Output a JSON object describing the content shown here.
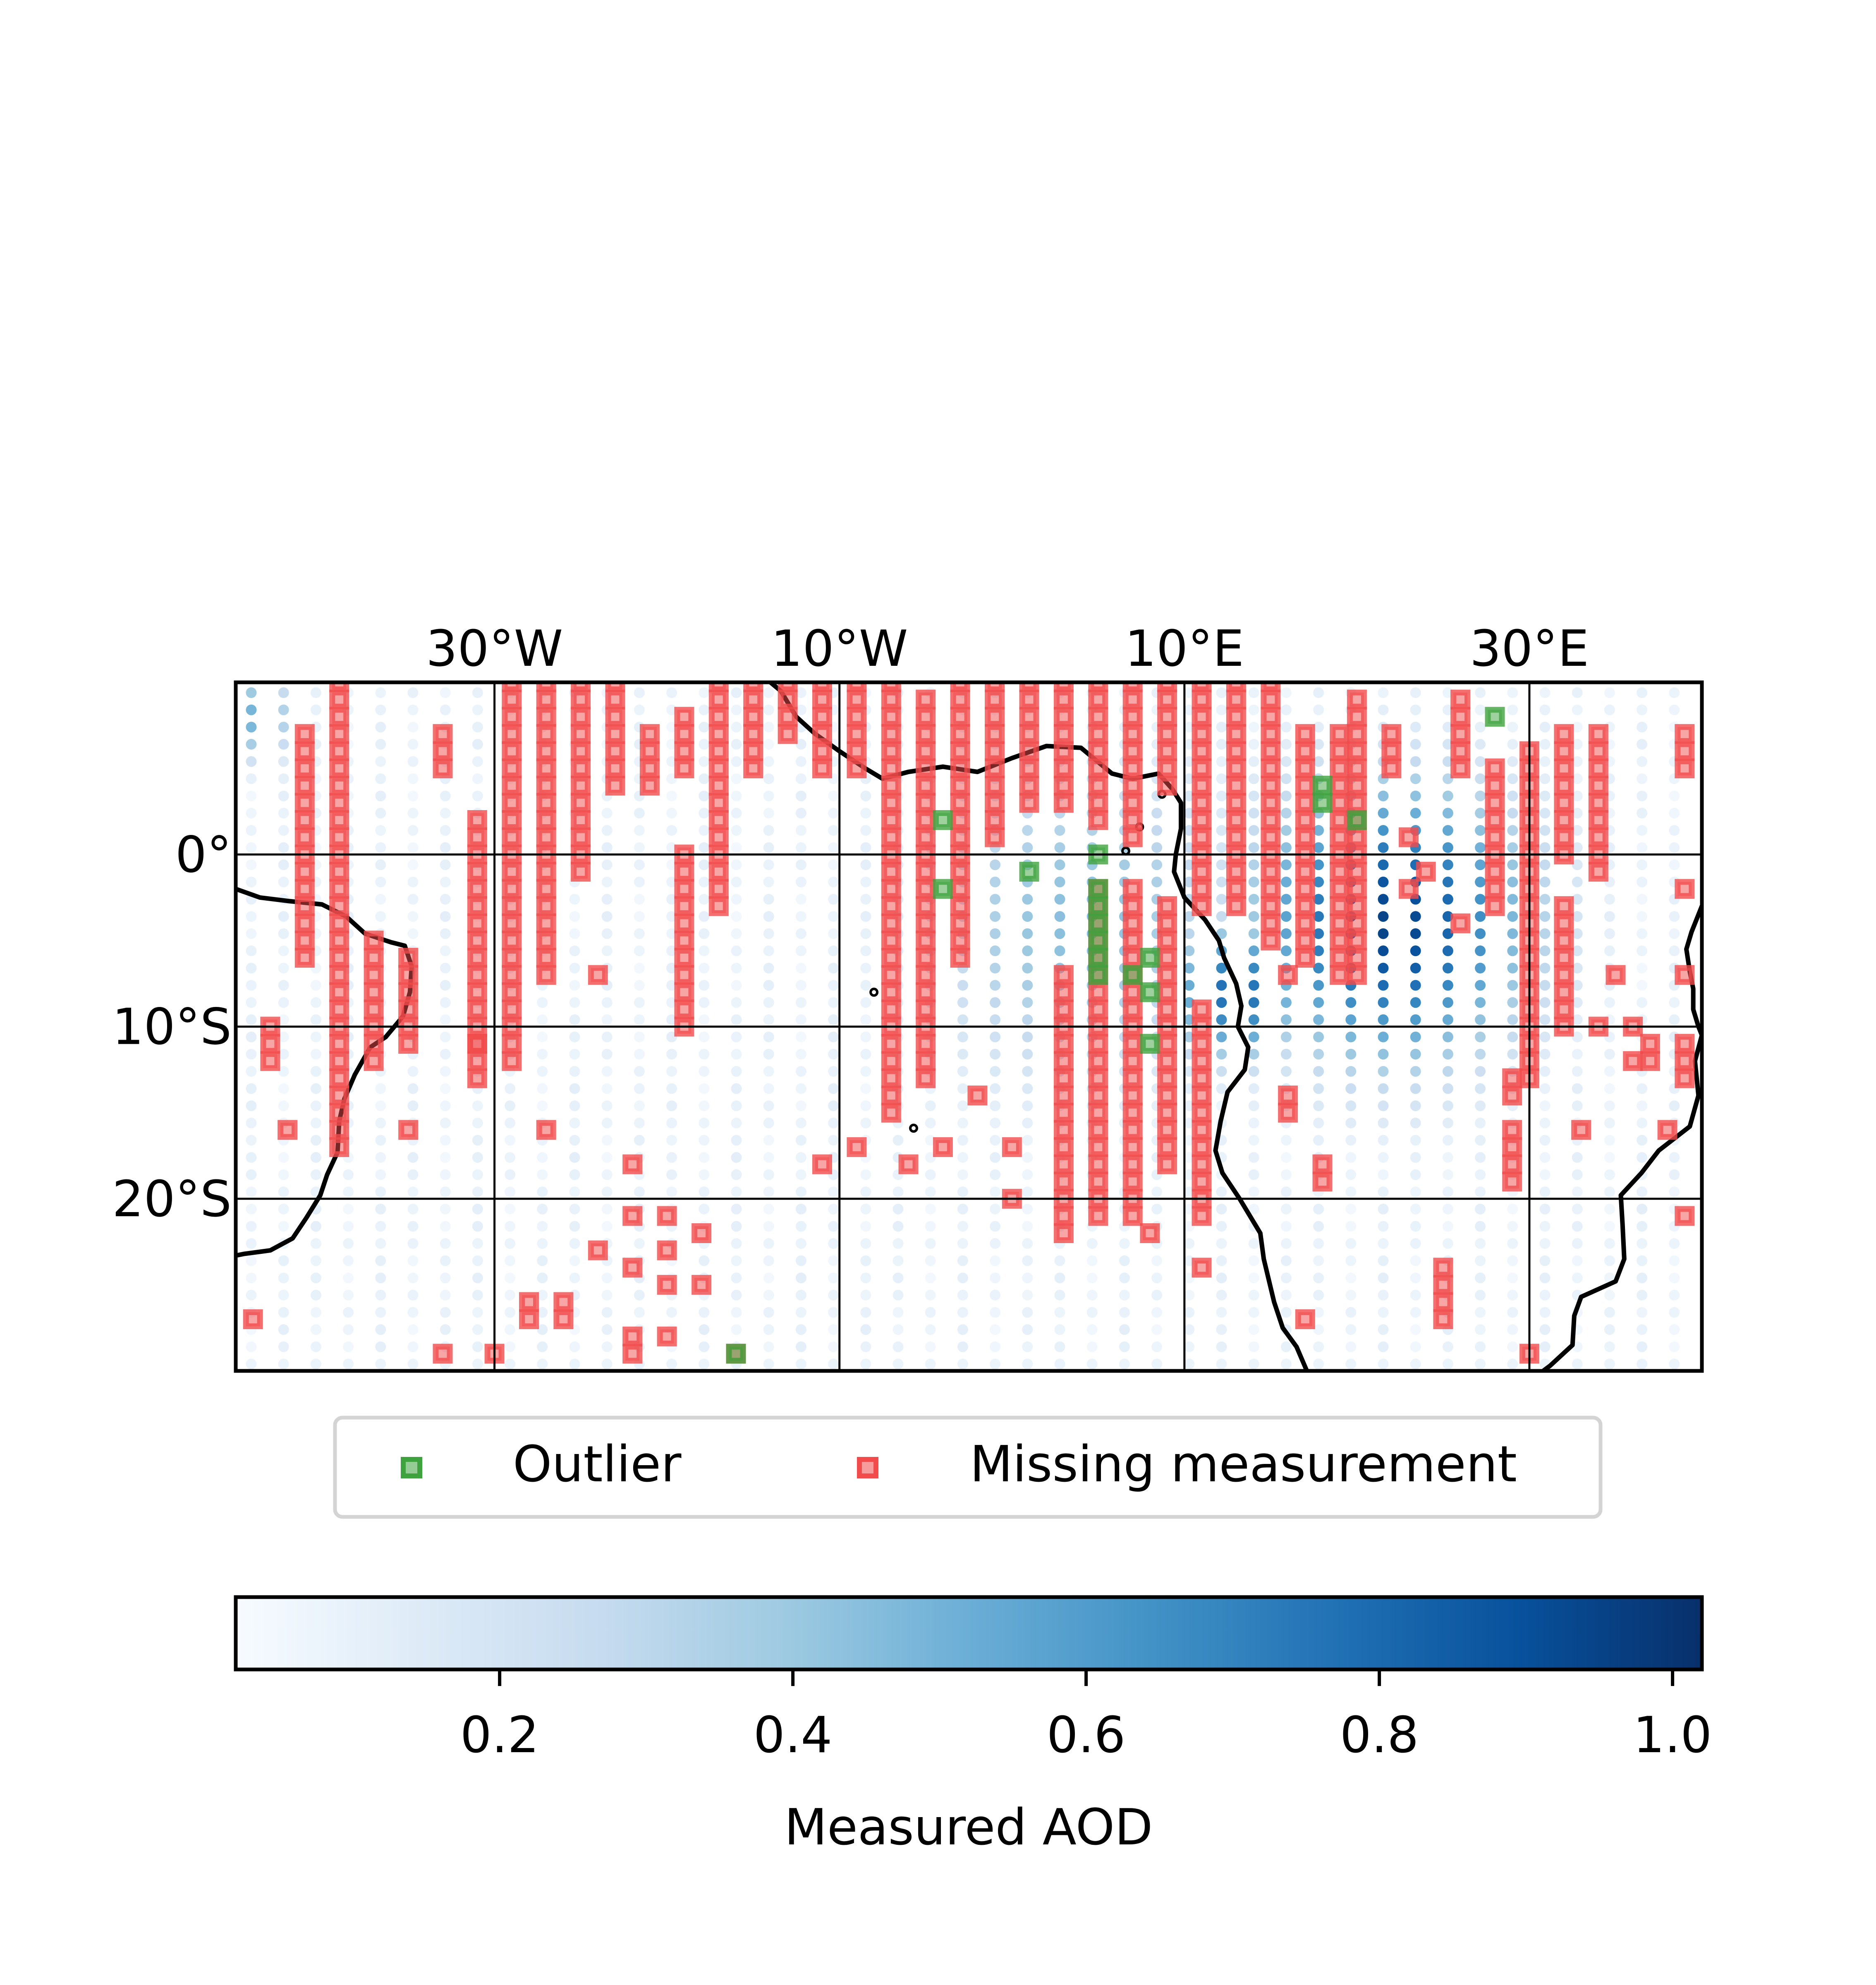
{
  "map": {
    "lon_range": [
      -45,
      40
    ],
    "lat_range": [
      -30,
      10
    ],
    "lon_ticks": [
      {
        "value": -30,
        "label": "30°W"
      },
      {
        "value": -10,
        "label": "10°W"
      },
      {
        "value": 10,
        "label": "10°E"
      },
      {
        "value": 30,
        "label": "30°E"
      }
    ],
    "lat_ticks": [
      {
        "value": 0,
        "label": "0°"
      },
      {
        "value": -10,
        "label": "10°S"
      },
      {
        "value": -20,
        "label": "20°S"
      }
    ],
    "grid": true,
    "grid_step_deg": 1.875,
    "coastline_color": "#000000",
    "colormap": "Blues",
    "aod_field": {
      "background_value": 0.08,
      "hotspots": [
        {
          "lon": 22,
          "lat": -4,
          "peak": 0.95,
          "radius_deg": 6
        },
        {
          "lon": 13,
          "lat": -8,
          "peak": 0.8,
          "radius_deg": 3
        },
        {
          "lon": 4,
          "lat": -4,
          "peak": 0.45,
          "radius_deg": 7
        },
        {
          "lon": -44,
          "lat": 8,
          "peak": 0.5,
          "radius_deg": 2
        }
      ]
    },
    "missing_color": "#f14b4b",
    "outlier_color": "#3ea33e",
    "missing_columns": [
      {
        "lon": -43,
        "lat_from": -10,
        "lat_to": -12
      },
      {
        "lon": -41,
        "lat_from": 7,
        "lat_to": -6
      },
      {
        "lon": -39,
        "lat_from": 10,
        "lat_to": -17
      },
      {
        "lon": -37,
        "lat_from": -5,
        "lat_to": -12
      },
      {
        "lon": -35,
        "lat_from": -6,
        "lat_to": -11
      },
      {
        "lon": -33,
        "lat_from": 7,
        "lat_to": 5
      },
      {
        "lon": -31,
        "lat_from": 2,
        "lat_to": -13
      },
      {
        "lon": -29,
        "lat_from": 10,
        "lat_to": -12
      },
      {
        "lon": -27,
        "lat_from": 10,
        "lat_to": -7
      },
      {
        "lon": -25,
        "lat_from": 10,
        "lat_to": -1
      },
      {
        "lon": -23,
        "lat_from": 10,
        "lat_to": 4
      },
      {
        "lon": -21,
        "lat_from": 7,
        "lat_to": 4
      },
      {
        "lon": -19,
        "lat_from": 8,
        "lat_to": 5
      },
      {
        "lon": -19,
        "lat_from": 0,
        "lat_to": -10
      },
      {
        "lon": -17,
        "lat_from": 10,
        "lat_to": -3
      },
      {
        "lon": -15,
        "lat_from": 10,
        "lat_to": 5
      },
      {
        "lon": -13,
        "lat_from": 10,
        "lat_to": 7
      },
      {
        "lon": -11,
        "lat_from": 10,
        "lat_to": 5
      },
      {
        "lon": -9,
        "lat_from": 10,
        "lat_to": 5
      },
      {
        "lon": -7,
        "lat_from": 10,
        "lat_to": -15
      },
      {
        "lon": -5,
        "lat_from": 9,
        "lat_to": -13
      },
      {
        "lon": -3,
        "lat_from": 10,
        "lat_to": -6
      },
      {
        "lon": -1,
        "lat_from": 10,
        "lat_to": 1
      },
      {
        "lon": 1,
        "lat_from": 10,
        "lat_to": 3
      },
      {
        "lon": 3,
        "lat_from": 10,
        "lat_to": 3
      },
      {
        "lon": 3,
        "lat_from": -7,
        "lat_to": -21
      },
      {
        "lon": 5,
        "lat_from": 10,
        "lat_to": 2
      },
      {
        "lon": 5,
        "lat_from": -2,
        "lat_to": -21
      },
      {
        "lon": 7,
        "lat_from": 10,
        "lat_to": 1
      },
      {
        "lon": 7,
        "lat_from": -2,
        "lat_to": -21
      },
      {
        "lon": 9,
        "lat_from": 10,
        "lat_to": 4
      },
      {
        "lon": 9,
        "lat_from": -3,
        "lat_to": -18
      },
      {
        "lon": 11,
        "lat_from": 10,
        "lat_to": -3
      },
      {
        "lon": 11,
        "lat_from": -9,
        "lat_to": -21
      },
      {
        "lon": 13,
        "lat_from": 10,
        "lat_to": -3
      },
      {
        "lon": 15,
        "lat_from": 10,
        "lat_to": -5
      },
      {
        "lon": 17,
        "lat_from": 7,
        "lat_to": -6
      },
      {
        "lon": 19,
        "lat_from": 7,
        "lat_to": -7
      },
      {
        "lon": 20,
        "lat_from": 9,
        "lat_to": -6
      },
      {
        "lon": 22,
        "lat_from": 7,
        "lat_to": 5
      },
      {
        "lon": 26,
        "lat_from": 9,
        "lat_to": 5
      },
      {
        "lon": 28,
        "lat_from": 5,
        "lat_to": -3
      },
      {
        "lon": 30,
        "lat_from": 6,
        "lat_to": -13
      },
      {
        "lon": 32,
        "lat_from": 7,
        "lat_to": 0
      },
      {
        "lon": 32,
        "lat_from": -3,
        "lat_to": -10
      },
      {
        "lon": 34,
        "lat_from": 7,
        "lat_to": -1
      },
      {
        "lon": 39,
        "lat_from": 7,
        "lat_to": 5
      },
      {
        "lon": 39,
        "lat_from": -11,
        "lat_to": -13
      }
    ],
    "missing_points": [
      [
        -35,
        -16
      ],
      [
        -31,
        -11
      ],
      [
        -27,
        -16
      ],
      [
        -24,
        -7
      ],
      [
        -22,
        -18
      ],
      [
        -22,
        -21
      ],
      [
        -20,
        -21
      ],
      [
        -20,
        -23
      ],
      [
        -22,
        -24
      ],
      [
        -20,
        -25
      ],
      [
        -18,
        -22
      ],
      [
        -18,
        -25
      ],
      [
        -24,
        -23
      ],
      [
        -26,
        -26
      ],
      [
        -28,
        -26
      ],
      [
        -26,
        -27
      ],
      [
        -28,
        -27
      ],
      [
        -22,
        -28
      ],
      [
        -20,
        -28
      ],
      [
        -22,
        -29
      ],
      [
        -30,
        -29
      ],
      [
        -16,
        -29
      ],
      [
        -42,
        -16
      ],
      [
        -44,
        -27
      ],
      [
        -33,
        -29
      ],
      [
        -2,
        -14
      ],
      [
        -4,
        -17
      ],
      [
        -6,
        -18
      ],
      [
        0,
        -17
      ],
      [
        0,
        -20
      ],
      [
        -9,
        -17
      ],
      [
        -11,
        -18
      ],
      [
        3,
        -22
      ],
      [
        8,
        -22
      ],
      [
        11,
        -24
      ],
      [
        16,
        -14
      ],
      [
        16,
        -15
      ],
      [
        18,
        -18
      ],
      [
        18,
        -19
      ],
      [
        17,
        -27
      ],
      [
        29,
        -13
      ],
      [
        29,
        -14
      ],
      [
        29,
        -16
      ],
      [
        29,
        -17
      ],
      [
        29,
        -18
      ],
      [
        29,
        -19
      ],
      [
        25,
        -24
      ],
      [
        25,
        -25
      ],
      [
        25,
        -26
      ],
      [
        25,
        -27
      ],
      [
        30,
        -29
      ],
      [
        33,
        -16
      ],
      [
        34,
        -10
      ],
      [
        36,
        -10
      ],
      [
        36,
        -12
      ],
      [
        37,
        -11
      ],
      [
        37,
        -12
      ],
      [
        38,
        -16
      ],
      [
        39,
        -21
      ],
      [
        41,
        -28
      ],
      [
        39,
        -7
      ],
      [
        39,
        -2
      ],
      [
        35,
        -7
      ],
      [
        24,
        -1
      ],
      [
        26,
        -4
      ],
      [
        16,
        -7
      ],
      [
        20,
        -7
      ],
      [
        23,
        -2
      ],
      [
        23,
        1
      ]
    ],
    "outlier_points": [
      [
        -4,
        2
      ],
      [
        -4,
        -2
      ],
      [
        1,
        -1
      ],
      [
        5,
        0
      ],
      [
        5,
        -2
      ],
      [
        5,
        -3
      ],
      [
        5,
        -4
      ],
      [
        5,
        -5
      ],
      [
        5,
        -6
      ],
      [
        5,
        -7
      ],
      [
        8,
        -6
      ],
      [
        7,
        -7
      ],
      [
        8,
        -8
      ],
      [
        8,
        -11
      ],
      [
        18,
        4
      ],
      [
        18,
        3
      ],
      [
        20,
        2
      ],
      [
        28,
        8
      ],
      [
        -16,
        -29
      ]
    ],
    "coastlines": {
      "south_america": [
        [
          -45,
          -2
        ],
        [
          -43.6,
          -2.5
        ],
        [
          -42,
          -2.7
        ],
        [
          -40,
          -2.9
        ],
        [
          -38.6,
          -3.6
        ],
        [
          -37.5,
          -4.6
        ],
        [
          -36,
          -5.1
        ],
        [
          -35.2,
          -5.3
        ],
        [
          -34.8,
          -6.5
        ],
        [
          -34.9,
          -8
        ],
        [
          -35.3,
          -9.4
        ],
        [
          -36.3,
          -10.6
        ],
        [
          -37.2,
          -11.2
        ],
        [
          -38.1,
          -12.8
        ],
        [
          -38.7,
          -14.2
        ],
        [
          -39,
          -15.5
        ],
        [
          -39.1,
          -17.3
        ],
        [
          -39.7,
          -18.6
        ],
        [
          -40.1,
          -19.8
        ],
        [
          -40.9,
          -21.1
        ],
        [
          -41.7,
          -22.3
        ],
        [
          -43,
          -23
        ],
        [
          -44.5,
          -23.2
        ],
        [
          -45,
          -23.3
        ]
      ],
      "africa_west": [
        [
          -14,
          10
        ],
        [
          -13.4,
          9.5
        ],
        [
          -12.5,
          8
        ],
        [
          -11.4,
          7
        ],
        [
          -10,
          6
        ],
        [
          -8.5,
          5
        ],
        [
          -7.5,
          4.4
        ],
        [
          -6,
          4.8
        ],
        [
          -4,
          5.1
        ],
        [
          -2,
          4.8
        ],
        [
          0,
          5.6
        ],
        [
          2,
          6.3
        ],
        [
          4,
          6.2
        ],
        [
          5.8,
          4.7
        ],
        [
          7,
          4.4
        ],
        [
          8.5,
          4.7
        ],
        [
          9.3,
          3.8
        ],
        [
          9.8,
          3
        ],
        [
          9.8,
          1.5
        ],
        [
          9.5,
          0
        ],
        [
          9.4,
          -1
        ],
        [
          10,
          -2.5
        ],
        [
          11.2,
          -3.8
        ],
        [
          12,
          -5
        ],
        [
          12.3,
          -6
        ],
        [
          13,
          -7.5
        ],
        [
          13.3,
          -8.8
        ],
        [
          13.1,
          -10
        ],
        [
          13.7,
          -11.2
        ],
        [
          13.5,
          -12.5
        ],
        [
          12.5,
          -13.8
        ],
        [
          12.1,
          -15.5
        ],
        [
          11.8,
          -17.2
        ],
        [
          12.2,
          -18.5
        ],
        [
          13.2,
          -20
        ],
        [
          14.4,
          -22
        ],
        [
          14.6,
          -23.5
        ],
        [
          15.2,
          -26
        ],
        [
          15.7,
          -27.5
        ],
        [
          16.5,
          -28.6
        ],
        [
          17.1,
          -30
        ]
      ],
      "africa_east": [
        [
          40,
          -10.5
        ],
        [
          39.6,
          -12
        ],
        [
          39.8,
          -14
        ],
        [
          39.3,
          -15.8
        ],
        [
          37.5,
          -17.2
        ],
        [
          36.5,
          -18.5
        ],
        [
          35.3,
          -19.8
        ],
        [
          35.4,
          -21.5
        ],
        [
          35.5,
          -23.5
        ],
        [
          35,
          -24.8
        ],
        [
          33,
          -25.7
        ],
        [
          32.6,
          -26.8
        ],
        [
          32.5,
          -28.5
        ],
        [
          31.2,
          -29.7
        ],
        [
          30.8,
          -30
        ]
      ],
      "africa_horn": [
        [
          40,
          -3
        ],
        [
          39.4,
          -4.5
        ],
        [
          39.1,
          -5.5
        ],
        [
          39.3,
          -6.8
        ],
        [
          39.5,
          -7.8
        ],
        [
          39.5,
          -9
        ],
        [
          39.8,
          -10
        ],
        [
          40,
          -10.5
        ]
      ],
      "islands": [
        [
          -8,
          -8,
          0.3
        ],
        [
          -5.7,
          -15.9,
          0.3
        ],
        [
          6.6,
          0.2,
          0.3
        ],
        [
          7.4,
          1.6,
          0.25
        ],
        [
          8.7,
          3.5,
          0.4
        ]
      ]
    }
  },
  "legend": {
    "items": [
      {
        "label": "Outlier",
        "color": "#3ea33e"
      },
      {
        "label": "Missing measurement",
        "color": "#f14b4b"
      }
    ]
  },
  "colorbar": {
    "label": "Measured AOD",
    "vmin": 0.02,
    "vmax": 1.02,
    "ticks": [
      "0.2",
      "0.4",
      "0.6",
      "0.8",
      "1.0"
    ]
  }
}
